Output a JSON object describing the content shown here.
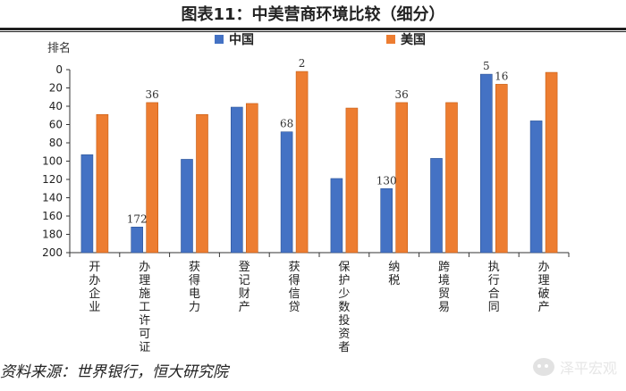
{
  "header": {
    "title": "图表11：中美营商环境比较（细分）"
  },
  "footer": {
    "source": "资料来源：世界银行，恒大研究院"
  },
  "watermark": {
    "text": "泽平宏观",
    "icon": "wechat-icon"
  },
  "colors": {
    "china": "#4472C4",
    "china_edge": "#2F5597",
    "usa": "#ED7D31",
    "usa_edge": "#C55A11",
    "axis": "#333333"
  },
  "chart_data": {
    "type": "bar",
    "ylabel": "排名",
    "ylim": [
      0,
      200
    ],
    "y_reversed": true,
    "y_ticks": [
      0,
      20,
      40,
      60,
      80,
      100,
      120,
      140,
      160,
      180,
      200
    ],
    "legend": {
      "placement": "top-center"
    },
    "grid": false,
    "categories": [
      "开办企业",
      "办理施工许可证",
      "获得电力",
      "登记财产",
      "获得信贷",
      "保护少数投资者",
      "纳税",
      "跨境贸易",
      "执行合同",
      "办理破产"
    ],
    "series": [
      {
        "name": "中国",
        "values": [
          93,
          172,
          98,
          41,
          68,
          119,
          130,
          97,
          5,
          56
        ]
      },
      {
        "name": "美国",
        "values": [
          49,
          36,
          49,
          37,
          2,
          42,
          36,
          36,
          16,
          3
        ]
      }
    ],
    "data_labels": [
      {
        "series": 0,
        "index": 1,
        "text": "172"
      },
      {
        "series": 1,
        "index": 1,
        "text": "36"
      },
      {
        "series": 0,
        "index": 4,
        "text": "68"
      },
      {
        "series": 1,
        "index": 4,
        "text": "2"
      },
      {
        "series": 0,
        "index": 6,
        "text": "130"
      },
      {
        "series": 1,
        "index": 6,
        "text": "36"
      },
      {
        "series": 0,
        "index": 8,
        "text": "5"
      },
      {
        "series": 1,
        "index": 8,
        "text": "16"
      }
    ]
  }
}
